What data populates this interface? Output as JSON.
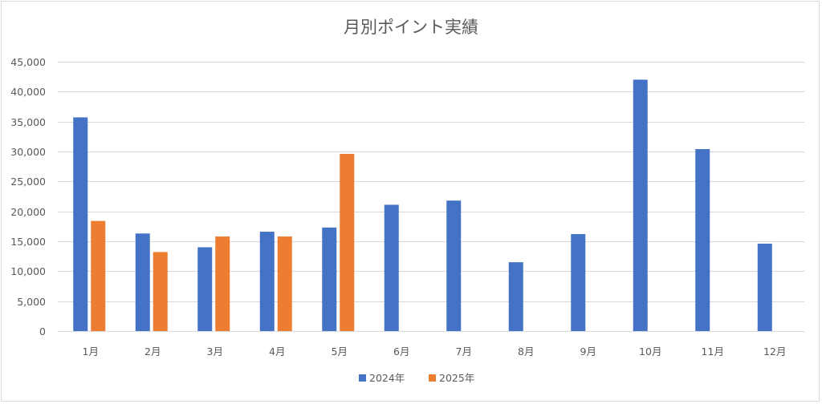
{
  "chart_data": {
    "type": "bar",
    "title": "月別ポイント実績",
    "xlabel": "",
    "ylabel": "",
    "categories": [
      "1月",
      "2月",
      "3月",
      "4月",
      "5月",
      "6月",
      "7月",
      "8月",
      "9月",
      "10月",
      "11月",
      "12月"
    ],
    "series": [
      {
        "name": "2024年",
        "color": "#4472c4",
        "values": [
          35700,
          16300,
          14000,
          16600,
          17300,
          21100,
          21800,
          11500,
          16200,
          42000,
          30400,
          14600
        ]
      },
      {
        "name": "2025年",
        "color": "#ed7d31",
        "values": [
          18400,
          13200,
          15800,
          15800,
          29600,
          null,
          null,
          null,
          null,
          null,
          null,
          null
        ]
      }
    ],
    "ylim": [
      0,
      45000
    ],
    "yticks": [
      "0",
      "5,000",
      "10,000",
      "15,000",
      "20,000",
      "25,000",
      "30,000",
      "35,000",
      "40,000",
      "45,000"
    ],
    "ytick_values": [
      0,
      5000,
      10000,
      15000,
      20000,
      25000,
      30000,
      35000,
      40000,
      45000
    ],
    "grid": true,
    "legend_position": "bottom"
  }
}
